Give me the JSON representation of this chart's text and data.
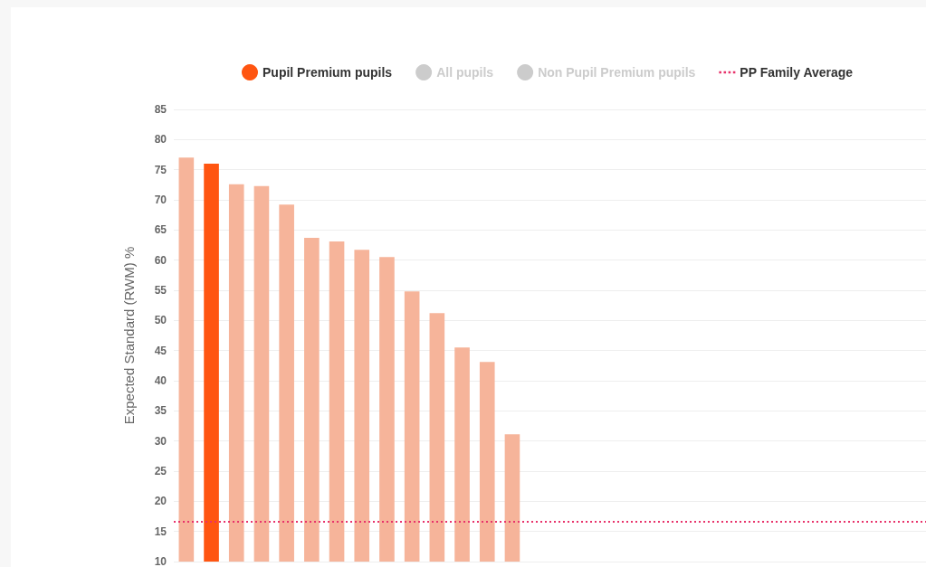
{
  "chart_data": {
    "type": "bar",
    "ylabel": "Expected Standard (RWM) %",
    "categories": [
      null,
      null,
      null,
      null,
      null,
      null,
      null,
      null,
      null,
      null,
      null,
      null,
      null,
      null,
      null,
      null,
      null,
      null,
      null,
      null,
      null,
      null,
      null,
      null,
      null,
      null,
      null,
      null,
      null,
      null
    ],
    "series": [
      {
        "name": "Pupil Premium pupils",
        "color": "#ff5511",
        "values": [
          77,
          76,
          72.6,
          72.3,
          69.2,
          63.7,
          63.1,
          61.7,
          60.5,
          54.8,
          51.2,
          45.5,
          43.1,
          31.1,
          null,
          null,
          null,
          null,
          null,
          null,
          null,
          null,
          null,
          null,
          null,
          null,
          null,
          null,
          null,
          null
        ],
        "colors": [
          "#f6b49a",
          "#ff5511",
          "#f6b49a",
          "#f6b49a",
          "#f6b49a",
          "#f6b49a",
          "#f6b49a",
          "#f6b49a",
          "#f6b49a",
          "#f6b49a",
          "#f6b49a",
          "#f6b49a",
          "#f6b49a",
          "#f6b49a",
          "#f6b49a",
          "#f6b49a",
          "#f6b49a",
          "#f6b49a",
          "#f6b49a",
          "#f6b49a",
          "#f6b49a",
          "#f6b49a",
          "#f6b49a",
          "#f6b49a",
          "#f6b49a",
          "#f6b49a",
          "#f6b49a",
          "#f6b49a",
          "#f6b49a",
          "#f6b49a"
        ]
      },
      {
        "name": "All pupils",
        "color": "#cccccc",
        "values": [
          null,
          null,
          null,
          null,
          null,
          null,
          null,
          null,
          null,
          null,
          null,
          null,
          null,
          null,
          null,
          null,
          null,
          null,
          null,
          null,
          null,
          null,
          null,
          null,
          null,
          null,
          null,
          null,
          null,
          null
        ]
      },
      {
        "name": "Non Pupil Premium pupils",
        "color": "#cccccc",
        "values": [
          null,
          null,
          null,
          null,
          null,
          null,
          null,
          null,
          null,
          null,
          null,
          null,
          null,
          null,
          null,
          null,
          null,
          null,
          null,
          null,
          null,
          null,
          null,
          null,
          null,
          null,
          null,
          null,
          null,
          null
        ]
      }
    ],
    "ref_lines": [
      {
        "axis": "y",
        "value": 16.6,
        "label": "PP Family Average",
        "color": "#e8336b",
        "line_style": "dotted"
      }
    ],
    "ylim": [
      10,
      85
    ],
    "yticks": [
      10,
      15,
      20,
      25,
      30,
      35,
      40,
      45,
      50,
      55,
      60,
      65,
      70,
      75,
      80,
      85
    ],
    "grid": "y",
    "legend": "top",
    "tick_labels": "y"
  }
}
